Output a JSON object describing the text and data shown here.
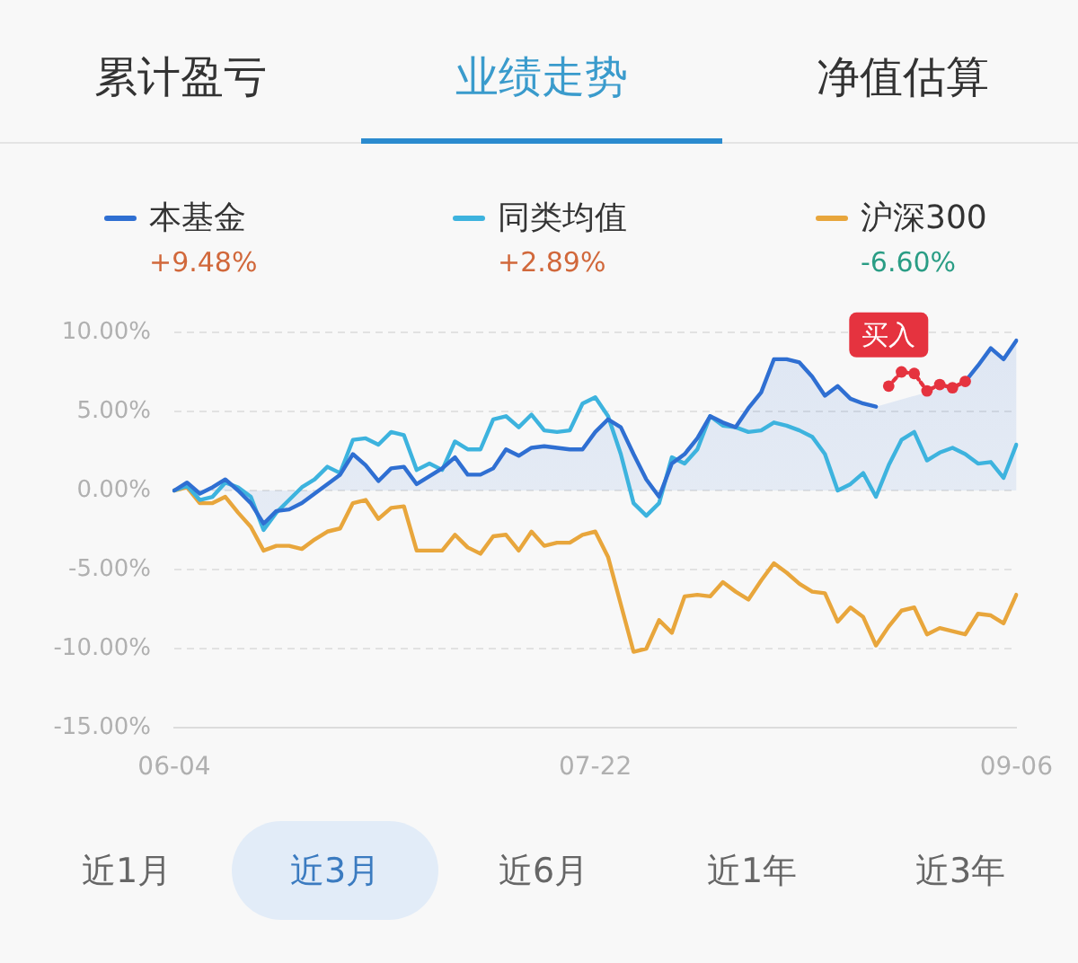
{
  "chart_data": {
    "type": "line",
    "annotations": [
      "累计盈亏",
      "业绩走势",
      "净值估算",
      "+9.48%",
      "+2.89%",
      "-6.60%",
      "近1月",
      "近3月",
      "近6月",
      "近1年",
      "近3年"
    ],
    "categories": [
      "06-04",
      null,
      null,
      null,
      null,
      null,
      null,
      null,
      null,
      null,
      null,
      null,
      null,
      null,
      null,
      null,
      null,
      null,
      null,
      null,
      null,
      null,
      null,
      null,
      null,
      null,
      null,
      null,
      null,
      null,
      null,
      null,
      null,
      "07-22",
      null,
      null,
      null,
      null,
      null,
      null,
      null,
      null,
      null,
      null,
      null,
      null,
      null,
      null,
      null,
      null,
      null,
      null,
      null,
      null,
      null,
      null,
      null,
      null,
      null,
      null,
      null,
      null,
      null,
      null,
      null,
      null,
      "09-06"
    ],
    "ylim": [
      -15,
      10
    ],
    "yticks": [
      {
        "value": -15,
        "label": "-15.00%"
      },
      {
        "value": -10,
        "label": "-10.00%"
      },
      {
        "value": -5,
        "label": "-5.00%"
      },
      {
        "value": 0,
        "label": "0.00%"
      },
      {
        "value": 5,
        "label": "5.00%"
      },
      {
        "value": 10,
        "label": "10.00%"
      }
    ],
    "grid": "y",
    "legend": "top",
    "series": [
      {
        "name": "本基金",
        "type": "area",
        "color": "#2f6fd2",
        "values": [
          0,
          0.5,
          -0.2,
          0.2,
          0.7,
          0,
          -0.8,
          -2.1,
          -1.3,
          -1.2,
          -0.8,
          -0.2,
          0.4,
          1.0,
          2.3,
          1.6,
          0.6,
          1.4,
          1.5,
          0.4,
          0.9,
          1.4,
          2.1,
          1.0,
          1.0,
          1.4,
          2.6,
          2.2,
          2.7,
          2.8,
          2.7,
          2.6,
          2.6,
          3.7,
          4.5,
          4.0,
          2.3,
          0.7,
          -0.4,
          1.7,
          2.3,
          3.3,
          4.7,
          4.3,
          4.0,
          5.2,
          6.2,
          8.3,
          8.3,
          8.1,
          7.2,
          6.0,
          6.6,
          5.8,
          5.5,
          5.3,
          null,
          null,
          null,
          null,
          null,
          null,
          6.9,
          7.9,
          9.0,
          8.3,
          9.48
        ]
      },
      {
        "name": "同类均值",
        "color": "#3db3de",
        "values": [
          0,
          0.3,
          -0.6,
          -0.4,
          0.5,
          0.2,
          -0.4,
          -2.5,
          -1.4,
          -0.6,
          0.2,
          0.7,
          1.5,
          1.1,
          3.2,
          3.3,
          2.9,
          3.7,
          3.5,
          1.3,
          1.7,
          1.3,
          3.1,
          2.6,
          2.6,
          4.5,
          4.7,
          4.0,
          4.8,
          3.8,
          3.7,
          3.8,
          5.5,
          5.9,
          4.7,
          2.3,
          -0.8,
          -1.6,
          -0.8,
          2.1,
          1.7,
          2.6,
          4.7,
          4.1,
          4.0,
          3.7,
          3.8,
          4.3,
          4.1,
          3.8,
          3.4,
          2.3,
          0.0,
          0.4,
          1.1,
          -0.4,
          1.6,
          3.2,
          3.7,
          1.9,
          2.4,
          2.7,
          2.3,
          1.7,
          1.8,
          0.8,
          2.89
        ]
      },
      {
        "name": "沪深300",
        "color": "#e8a63c",
        "values": [
          0,
          0.2,
          -0.8,
          -0.8,
          -0.4,
          -1.4,
          -2.3,
          -3.8,
          -3.5,
          -3.5,
          -3.7,
          -3.1,
          -2.6,
          -2.4,
          -0.8,
          -0.6,
          -1.8,
          -1.1,
          -1.0,
          -3.8,
          -3.8,
          -3.8,
          -2.8,
          -3.6,
          -4.0,
          -2.9,
          -2.8,
          -3.8,
          -2.6,
          -3.5,
          -3.3,
          -3.3,
          -2.8,
          -2.6,
          -4.2,
          -7.2,
          -10.2,
          -10.0,
          -8.2,
          -9.0,
          -6.7,
          -6.6,
          -6.7,
          -5.8,
          -6.4,
          -6.9,
          -5.7,
          -4.6,
          -5.2,
          -5.9,
          -6.4,
          -6.5,
          -8.3,
          -7.4,
          -8.0,
          -9.8,
          -8.6,
          -7.6,
          -7.4,
          -9.1,
          -8.7,
          -8.9,
          -9.1,
          -7.8,
          -7.9,
          -8.4,
          -6.6
        ]
      },
      {
        "name": "买入",
        "color": "#e5333f",
        "marker": "circle",
        "line_style": "dotted",
        "values": [
          null,
          null,
          null,
          null,
          null,
          null,
          null,
          null,
          null,
          null,
          null,
          null,
          null,
          null,
          null,
          null,
          null,
          null,
          null,
          null,
          null,
          null,
          null,
          null,
          null,
          null,
          null,
          null,
          null,
          null,
          null,
          null,
          null,
          null,
          null,
          null,
          null,
          null,
          null,
          null,
          null,
          null,
          null,
          null,
          null,
          null,
          null,
          null,
          null,
          null,
          null,
          null,
          null,
          null,
          null,
          null,
          6.6,
          7.5,
          7.4,
          6.3,
          6.7,
          6.5,
          6.9,
          null,
          null,
          null,
          null
        ]
      }
    ]
  }
}
